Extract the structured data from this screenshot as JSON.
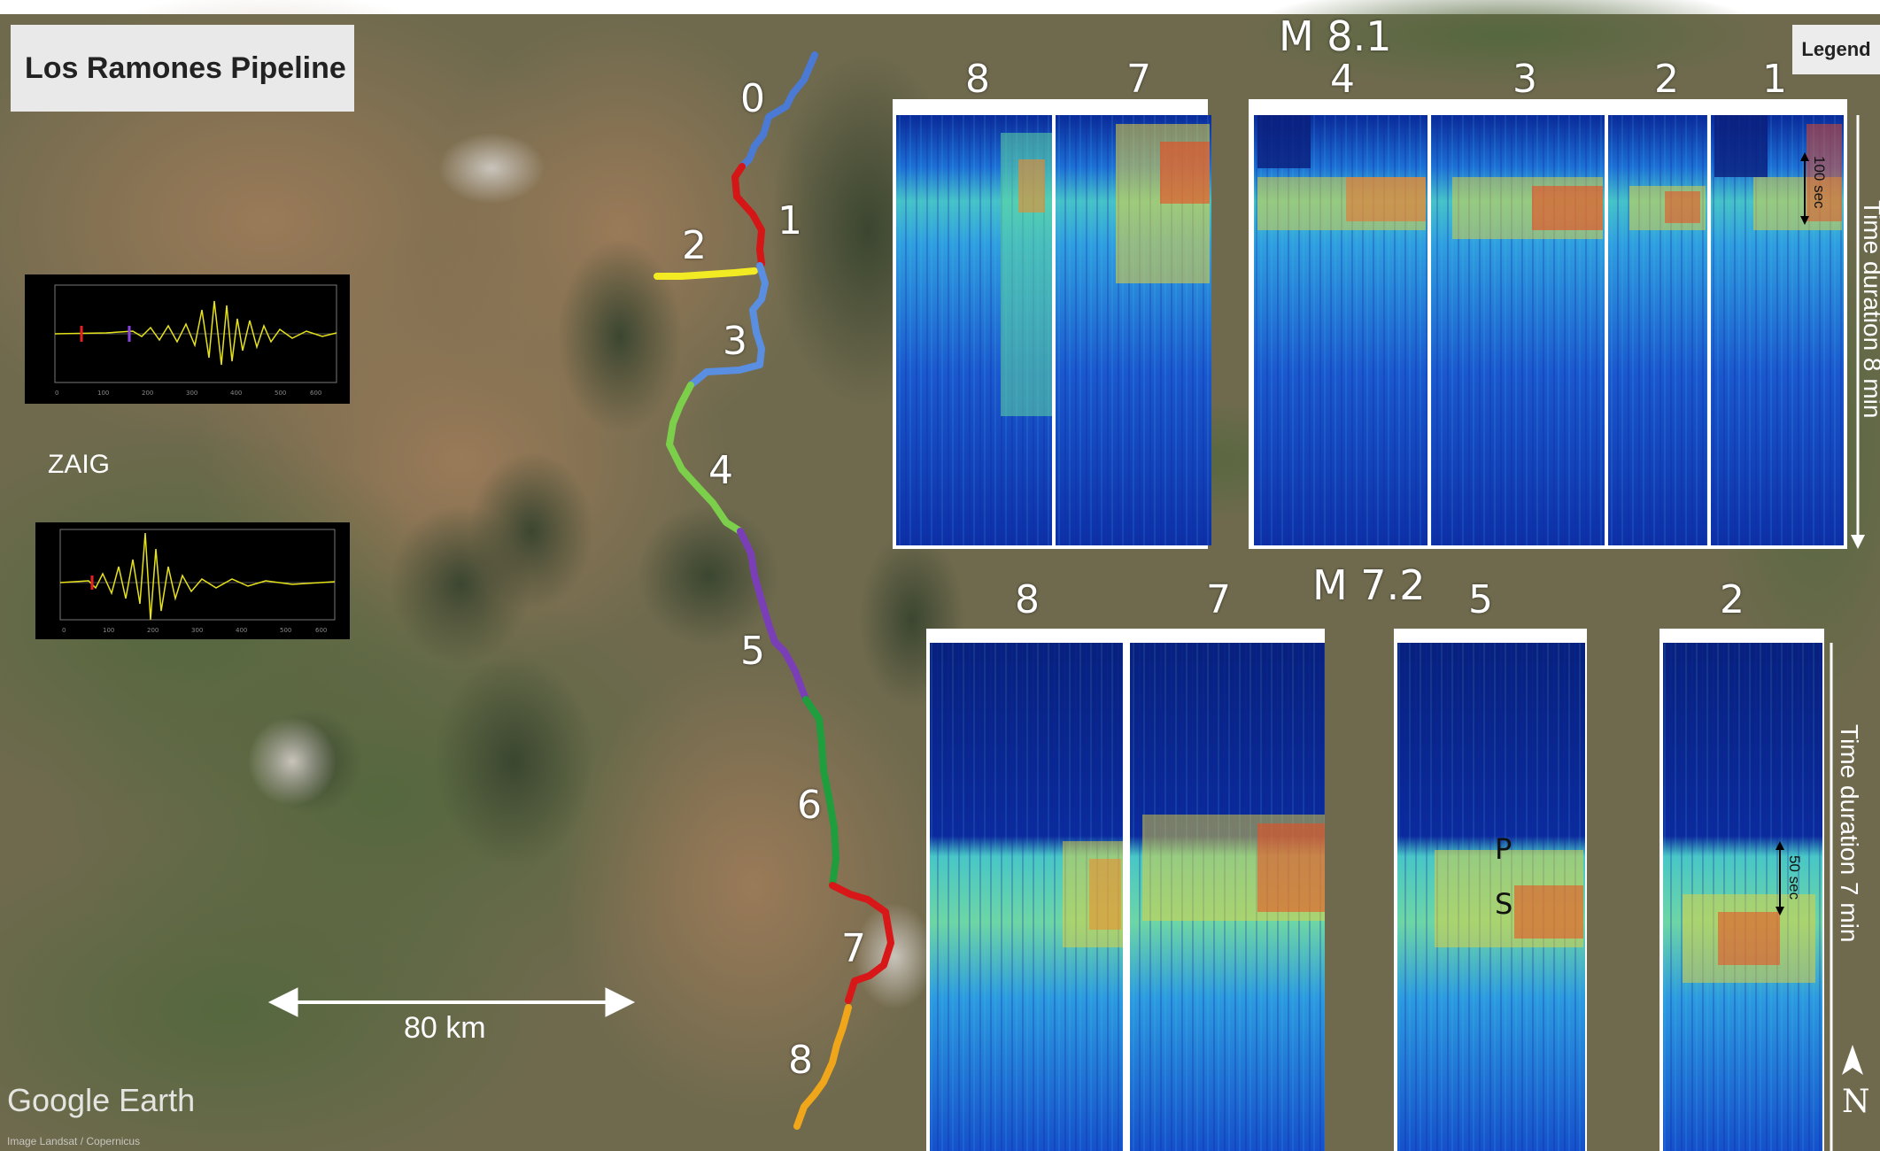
{
  "title": "Los Ramones Pipeline",
  "legend_label": "Legend",
  "station": "ZAIG",
  "scale_bar": "80 km",
  "north": "N",
  "watermark": "Google Earth",
  "credit": "Image Landsat / Copernicus",
  "pipeline_segments": [
    {
      "label": "0",
      "color": "#4a7ad4"
    },
    {
      "label": "1",
      "color": "#d41616"
    },
    {
      "label": "2",
      "color": "#f2ea22"
    },
    {
      "label": "3",
      "color": "#5a8ee0"
    },
    {
      "label": "4",
      "color": "#7ccf4a"
    },
    {
      "label": "5",
      "color": "#7a3fb6"
    },
    {
      "label": "6",
      "color": "#1e9e3c"
    },
    {
      "label": "7",
      "color": "#d81818"
    },
    {
      "label": "8",
      "color": "#f0a61a"
    }
  ],
  "event_upper": {
    "magnitude": "M 8.1",
    "columns": [
      "8",
      "7",
      "4",
      "3",
      "2",
      "1"
    ],
    "duration": "Time duration 8 min",
    "marker": "100 sec"
  },
  "event_lower": {
    "magnitude": "M 7.2",
    "columns": [
      "8",
      "7",
      "5",
      "2"
    ],
    "duration": "Time duration 7 min",
    "marker": "50 sec",
    "phase_p": "P",
    "phase_s": "S"
  }
}
